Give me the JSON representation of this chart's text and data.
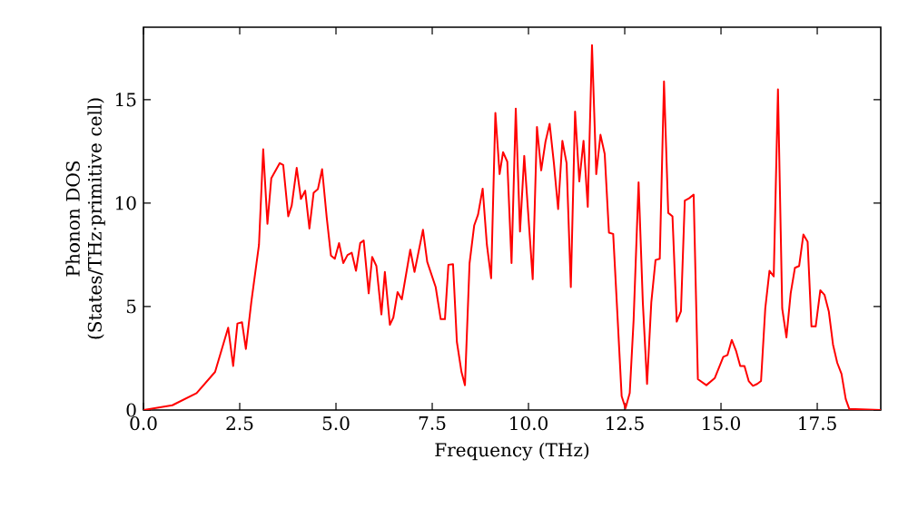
{
  "chart_data": {
    "type": "line",
    "xlabel": "Frequency (THz)",
    "ylabel": "Phonon DOS (States/THz·primitive cell)",
    "x": [
      0,
      0.75,
      1.38,
      1.86,
      2.2,
      2.33,
      2.44,
      2.56,
      2.66,
      2.8,
      3.0,
      3.11,
      3.22,
      3.32,
      3.54,
      3.63,
      3.76,
      3.85,
      3.98,
      4.09,
      4.2,
      4.31,
      4.42,
      4.53,
      4.64,
      4.76,
      4.87,
      4.97,
      5.08,
      5.19,
      5.3,
      5.41,
      5.52,
      5.63,
      5.72,
      5.85,
      5.94,
      6.05,
      6.18,
      6.27,
      6.4,
      6.49,
      6.6,
      6.71,
      6.93,
      7.04,
      7.26,
      7.37,
      7.59,
      7.72,
      7.83,
      7.92,
      8.04,
      8.14,
      8.26,
      8.35,
      8.47,
      8.59,
      8.69,
      8.81,
      8.92,
      9.03,
      9.14,
      9.25,
      9.34,
      9.45,
      9.56,
      9.67,
      9.78,
      9.89,
      10.11,
      10.22,
      10.33,
      10.44,
      10.55,
      10.66,
      10.77,
      10.88,
      10.99,
      11.1,
      11.21,
      11.32,
      11.43,
      11.54,
      11.65,
      11.76,
      11.87,
      11.98,
      12.09,
      12.2,
      12.31,
      12.42,
      12.52,
      12.63,
      12.73,
      12.86,
      12.97,
      13.08,
      13.19,
      13.3,
      13.41,
      13.52,
      13.63,
      13.74,
      13.85,
      13.96,
      14.06,
      14.17,
      14.29,
      14.4,
      14.62,
      14.84,
      15.06,
      15.17,
      15.28,
      15.39,
      15.5,
      15.61,
      15.72,
      15.83,
      15.94,
      16.04,
      16.15,
      16.26,
      16.37,
      16.48,
      16.59,
      16.7,
      16.81,
      16.92,
      17.03,
      17.14,
      17.25,
      17.35,
      17.46,
      17.58,
      17.69,
      17.8,
      17.91,
      18.02,
      18.13,
      18.24,
      18.33,
      19.15
    ],
    "series": [
      {
        "color": "#ff0000",
        "values": [
          0,
          0.23,
          0.82,
          1.84,
          3.98,
          2.13,
          4.18,
          4.24,
          2.95,
          5.2,
          7.98,
          12.6,
          9.0,
          11.2,
          11.93,
          11.84,
          9.36,
          9.88,
          11.7,
          10.2,
          10.6,
          8.77,
          10.5,
          10.67,
          11.64,
          9.3,
          7.46,
          7.31,
          8.07,
          7.1,
          7.49,
          7.6,
          6.73,
          8.07,
          8.19,
          5.64,
          7.4,
          6.96,
          4.62,
          6.67,
          4.12,
          4.47,
          5.7,
          5.35,
          7.75,
          6.67,
          8.71,
          7.16,
          5.94,
          4.39,
          4.39,
          7.02,
          7.05,
          3.3,
          1.84,
          1.2,
          7.1,
          8.92,
          9.44,
          10.7,
          7.98,
          6.37,
          14.36,
          11.4,
          12.46,
          12.0,
          7.1,
          14.56,
          8.63,
          12.28,
          6.32,
          13.68,
          11.58,
          12.95,
          13.83,
          11.93,
          9.71,
          13.01,
          11.93,
          5.94,
          14.42,
          11.05,
          13.01,
          9.82,
          17.63,
          11.4,
          13.3,
          12.37,
          8.57,
          8.51,
          4.62,
          0.67,
          0.09,
          0.82,
          4.33,
          11.0,
          5.2,
          1.26,
          5.2,
          7.25,
          7.31,
          15.88,
          9.53,
          9.36,
          4.27,
          4.77,
          10.12,
          10.23,
          10.41,
          1.49,
          1.2,
          1.55,
          2.57,
          2.66,
          3.39,
          2.87,
          2.13,
          2.13,
          1.4,
          1.17,
          1.26,
          1.4,
          4.91,
          6.73,
          6.46,
          15.5,
          4.91,
          3.51,
          5.64,
          6.87,
          6.96,
          8.48,
          8.13,
          4.04,
          4.04,
          5.79,
          5.56,
          4.77,
          3.16,
          2.28,
          1.75,
          0.53,
          0.06,
          0
        ]
      }
    ],
    "xlim": [
      0,
      19.15
    ],
    "ylim": [
      0,
      18.5
    ],
    "xticks": [
      {
        "value": 0,
        "label": "0.0"
      },
      2.5,
      {
        "value": 5,
        "label": "5.0"
      },
      7.5,
      {
        "value": 10,
        "label": "10.0"
      },
      12.5,
      {
        "value": 15,
        "label": "15.0"
      },
      17.5
    ],
    "yticks": [
      0,
      5,
      10,
      15
    ],
    "grid": false,
    "marker": "none",
    "line_style": "solid"
  }
}
